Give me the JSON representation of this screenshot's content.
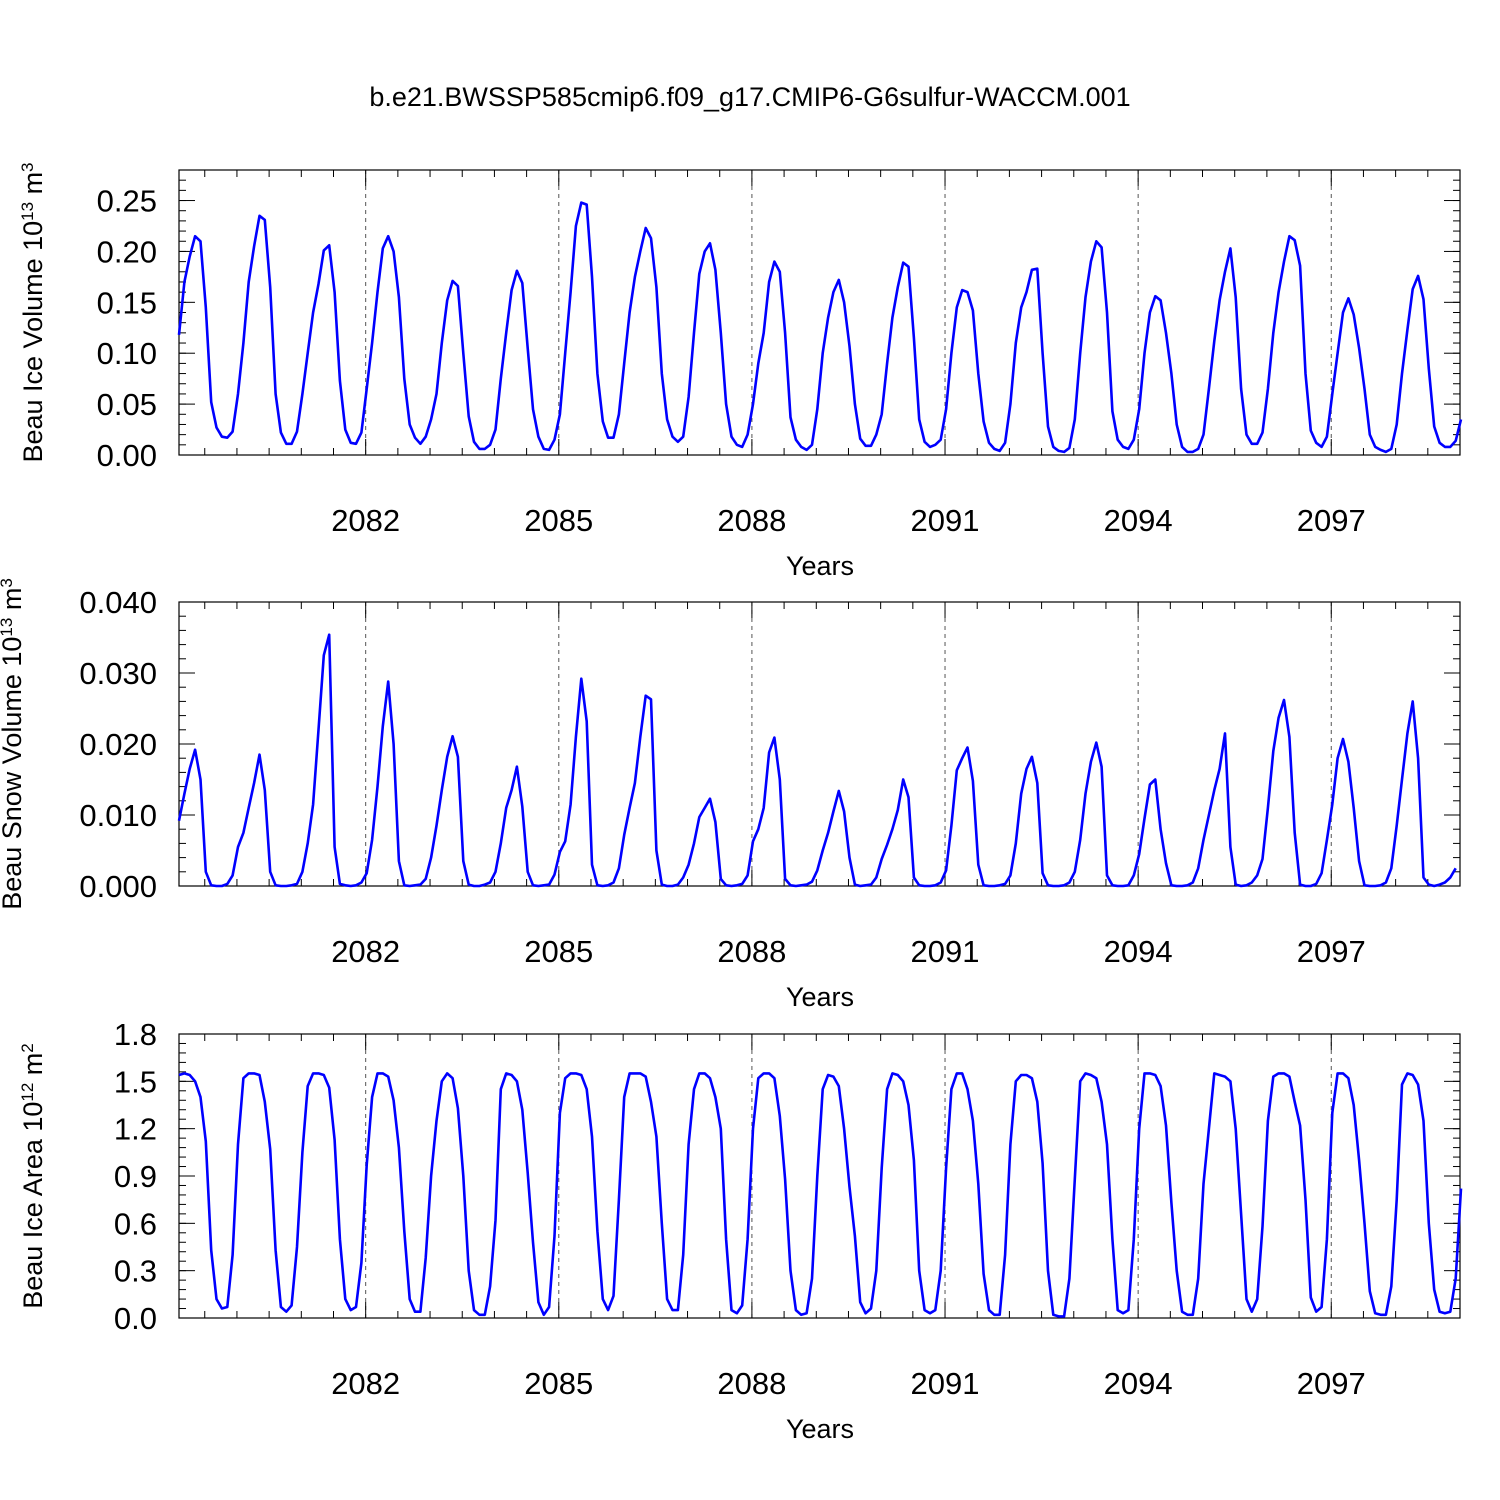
{
  "figure_title": "b.e21.BWSSP585cmip6.f09_g17.CMIP6-G6sulfur-WACCM.001",
  "chart_data": [
    {
      "type": "line",
      "id": "ice-volume",
      "ylabel_main": "Beau Ice Volume 10",
      "ylabel_exp": "13",
      "ylabel_unit": " m",
      "ylabel_unit_exp": "3",
      "xlabel": "Years",
      "xlim": [
        2079.1,
        2099.0
      ],
      "ylim": [
        0.0,
        0.28
      ],
      "yticks": [
        0.0,
        0.05,
        0.1,
        0.15,
        0.2,
        0.25
      ],
      "ytick_labels": [
        "0.00",
        "0.05",
        "0.10",
        "0.15",
        "0.20",
        "0.25"
      ],
      "xticks": [
        2082,
        2085,
        2088,
        2091,
        2094,
        2097
      ],
      "xtick_labels": [
        "2082",
        "2085",
        "2088",
        "2091",
        "2094",
        "2097"
      ],
      "series": [
        {
          "name": "Beau Ice Volume",
          "color": "#0000ff",
          "start_year": 2079.1,
          "step": 0.08333,
          "values": [
            0.118,
            0.17,
            0.195,
            0.215,
            0.21,
            0.145,
            0.052,
            0.027,
            0.018,
            0.017,
            0.023,
            0.06,
            0.11,
            0.17,
            0.205,
            0.235,
            0.231,
            0.165,
            0.06,
            0.022,
            0.011,
            0.011,
            0.023,
            0.06,
            0.1,
            0.14,
            0.168,
            0.201,
            0.206,
            0.16,
            0.073,
            0.025,
            0.012,
            0.011,
            0.022,
            0.065,
            0.11,
            0.16,
            0.203,
            0.215,
            0.2,
            0.155,
            0.075,
            0.03,
            0.017,
            0.011,
            0.018,
            0.035,
            0.06,
            0.11,
            0.152,
            0.171,
            0.166,
            0.1,
            0.038,
            0.013,
            0.006,
            0.006,
            0.01,
            0.025,
            0.075,
            0.12,
            0.162,
            0.181,
            0.169,
            0.105,
            0.045,
            0.018,
            0.006,
            0.005,
            0.015,
            0.04,
            0.1,
            0.16,
            0.225,
            0.248,
            0.246,
            0.175,
            0.08,
            0.033,
            0.017,
            0.017,
            0.04,
            0.09,
            0.14,
            0.175,
            0.2,
            0.223,
            0.213,
            0.165,
            0.08,
            0.035,
            0.018,
            0.013,
            0.018,
            0.057,
            0.12,
            0.178,
            0.2,
            0.208,
            0.182,
            0.12,
            0.05,
            0.018,
            0.01,
            0.008,
            0.02,
            0.05,
            0.09,
            0.12,
            0.17,
            0.19,
            0.18,
            0.12,
            0.037,
            0.015,
            0.008,
            0.005,
            0.01,
            0.045,
            0.1,
            0.135,
            0.16,
            0.172,
            0.15,
            0.107,
            0.05,
            0.016,
            0.009,
            0.009,
            0.02,
            0.04,
            0.09,
            0.135,
            0.165,
            0.189,
            0.185,
            0.115,
            0.035,
            0.013,
            0.008,
            0.01,
            0.015,
            0.045,
            0.1,
            0.145,
            0.162,
            0.16,
            0.142,
            0.08,
            0.033,
            0.012,
            0.006,
            0.004,
            0.012,
            0.05,
            0.11,
            0.145,
            0.16,
            0.182,
            0.183,
            0.1,
            0.028,
            0.008,
            0.004,
            0.003,
            0.007,
            0.035,
            0.1,
            0.155,
            0.19,
            0.21,
            0.204,
            0.14,
            0.043,
            0.015,
            0.008,
            0.006,
            0.015,
            0.045,
            0.1,
            0.14,
            0.156,
            0.152,
            0.12,
            0.08,
            0.03,
            0.008,
            0.003,
            0.003,
            0.006,
            0.02,
            0.065,
            0.112,
            0.152,
            0.18,
            0.203,
            0.155,
            0.065,
            0.02,
            0.011,
            0.011,
            0.022,
            0.065,
            0.12,
            0.16,
            0.19,
            0.215,
            0.211,
            0.186,
            0.08,
            0.024,
            0.012,
            0.008,
            0.018,
            0.06,
            0.1,
            0.14,
            0.154,
            0.138,
            0.105,
            0.065,
            0.02,
            0.008,
            0.005,
            0.003,
            0.006,
            0.03,
            0.08,
            0.123,
            0.163,
            0.176,
            0.153,
            0.085,
            0.028,
            0.012,
            0.008,
            0.008,
            0.014,
            0.035
          ]
        }
      ]
    },
    {
      "type": "line",
      "id": "snow-volume",
      "ylabel_main": "Beau Snow Volume 10",
      "ylabel_exp": "13",
      "ylabel_unit": " m",
      "ylabel_unit_exp": "3",
      "xlabel": "Years",
      "xlim": [
        2079.1,
        2099.0
      ],
      "ylim": [
        0.0,
        0.04
      ],
      "yticks": [
        0.0,
        0.01,
        0.02,
        0.03,
        0.04
      ],
      "ytick_labels": [
        "0.000",
        "0.010",
        "0.020",
        "0.030",
        "0.040"
      ],
      "xticks": [
        2082,
        2085,
        2088,
        2091,
        2094,
        2097
      ],
      "xtick_labels": [
        "2082",
        "2085",
        "2088",
        "2091",
        "2094",
        "2097"
      ],
      "series": [
        {
          "name": "Beau Snow Volume",
          "color": "#0000ff",
          "start_year": 2079.1,
          "step": 0.08333,
          "values": [
            0.0092,
            0.013,
            0.0165,
            0.0192,
            0.015,
            0.002,
            0.0001,
            0.0,
            0.0,
            0.0003,
            0.0015,
            0.0055,
            0.0075,
            0.011,
            0.0145,
            0.0185,
            0.0135,
            0.002,
            0.0001,
            0.0,
            0.0,
            0.0001,
            0.0003,
            0.002,
            0.006,
            0.0115,
            0.022,
            0.0325,
            0.0354,
            0.0055,
            0.0003,
            0.0001,
            0.0,
            0.0001,
            0.0005,
            0.0018,
            0.0065,
            0.014,
            0.0225,
            0.0288,
            0.02,
            0.0035,
            0.0001,
            0.0,
            0.0001,
            0.0002,
            0.001,
            0.004,
            0.0085,
            0.0135,
            0.0182,
            0.0211,
            0.0182,
            0.0035,
            0.0002,
            0.0,
            0.0,
            0.0002,
            0.0005,
            0.002,
            0.006,
            0.011,
            0.0135,
            0.0168,
            0.0112,
            0.002,
            0.0001,
            0.0,
            0.0001,
            0.0002,
            0.0016,
            0.0048,
            0.0063,
            0.0115,
            0.021,
            0.0292,
            0.0232,
            0.003,
            0.0001,
            0.0,
            0.0001,
            0.0005,
            0.0025,
            0.0072,
            0.011,
            0.0145,
            0.021,
            0.0268,
            0.0263,
            0.005,
            0.0002,
            0.0,
            0.0,
            0.0002,
            0.0012,
            0.003,
            0.006,
            0.0097,
            0.011,
            0.0123,
            0.009,
            0.001,
            0.0001,
            0.0,
            0.0001,
            0.0003,
            0.0015,
            0.0063,
            0.008,
            0.011,
            0.0188,
            0.0209,
            0.015,
            0.001,
            0.0001,
            0.0,
            0.0001,
            0.0002,
            0.0006,
            0.0022,
            0.005,
            0.0075,
            0.0105,
            0.0134,
            0.0105,
            0.004,
            0.0002,
            0.0,
            0.0001,
            0.0002,
            0.0012,
            0.0038,
            0.0058,
            0.008,
            0.0107,
            0.015,
            0.0125,
            0.0012,
            0.0001,
            0.0,
            0.0,
            0.0001,
            0.0005,
            0.0022,
            0.0085,
            0.0163,
            0.018,
            0.0195,
            0.0148,
            0.003,
            0.0001,
            0.0,
            0.0,
            0.0001,
            0.0003,
            0.0015,
            0.006,
            0.013,
            0.0165,
            0.0182,
            0.0145,
            0.0018,
            0.0001,
            0.0,
            0.0,
            0.0001,
            0.0005,
            0.002,
            0.0065,
            0.013,
            0.0175,
            0.0202,
            0.0168,
            0.0015,
            0.0001,
            0.0,
            0.0,
            0.0001,
            0.0015,
            0.0045,
            0.0095,
            0.0143,
            0.015,
            0.008,
            0.0032,
            0.0001,
            0.0,
            0.0,
            0.0001,
            0.0005,
            0.0025,
            0.0065,
            0.01,
            0.0135,
            0.0165,
            0.0215,
            0.0055,
            0.0002,
            0.0,
            0.0001,
            0.0005,
            0.0015,
            0.0038,
            0.011,
            0.019,
            0.0237,
            0.0262,
            0.021,
            0.0075,
            0.0002,
            0.0,
            0.0,
            0.0003,
            0.0018,
            0.0065,
            0.0115,
            0.018,
            0.0207,
            0.0175,
            0.011,
            0.0035,
            0.0001,
            0.0,
            0.0,
            0.0001,
            0.0005,
            0.0025,
            0.0085,
            0.015,
            0.0215,
            0.026,
            0.018,
            0.0012,
            0.0002,
            0.0,
            0.0002,
            0.0005,
            0.0012,
            0.0025
          ]
        }
      ]
    },
    {
      "type": "line",
      "id": "ice-area",
      "ylabel_main": "Beau Ice Area 10",
      "ylabel_exp": "12",
      "ylabel_unit": " m",
      "ylabel_unit_exp": "2",
      "xlabel": "Years",
      "xlim": [
        2079.1,
        2099.0
      ],
      "ylim": [
        0.0,
        1.8
      ],
      "yticks": [
        0.0,
        0.3,
        0.6,
        0.9,
        1.2,
        1.5,
        1.8
      ],
      "ytick_labels": [
        "0.0",
        "0.3",
        "0.6",
        "0.9",
        "1.2",
        "1.5",
        "1.8"
      ],
      "xticks": [
        2082,
        2085,
        2088,
        2091,
        2094,
        2097
      ],
      "xtick_labels": [
        "2082",
        "2085",
        "2088",
        "2091",
        "2094",
        "2097"
      ],
      "series": [
        {
          "name": "Beau Ice Area",
          "color": "#0000ff",
          "start_year": 2079.1,
          "step": 0.08333,
          "values": [
            1.54,
            1.55,
            1.54,
            1.5,
            1.4,
            1.12,
            0.43,
            0.12,
            0.06,
            0.07,
            0.4,
            1.1,
            1.52,
            1.55,
            1.55,
            1.54,
            1.37,
            1.07,
            0.43,
            0.07,
            0.04,
            0.08,
            0.45,
            1.05,
            1.47,
            1.55,
            1.55,
            1.54,
            1.46,
            1.13,
            0.5,
            0.12,
            0.05,
            0.07,
            0.35,
            0.97,
            1.4,
            1.55,
            1.55,
            1.53,
            1.38,
            1.08,
            0.55,
            0.12,
            0.04,
            0.04,
            0.38,
            0.9,
            1.25,
            1.5,
            1.55,
            1.52,
            1.33,
            0.9,
            0.3,
            0.05,
            0.02,
            0.02,
            0.2,
            0.62,
            1.45,
            1.55,
            1.54,
            1.5,
            1.32,
            0.92,
            0.48,
            0.1,
            0.02,
            0.07,
            0.52,
            1.3,
            1.52,
            1.55,
            1.55,
            1.54,
            1.45,
            1.15,
            0.55,
            0.12,
            0.05,
            0.14,
            0.75,
            1.4,
            1.55,
            1.55,
            1.55,
            1.53,
            1.37,
            1.15,
            0.6,
            0.12,
            0.05,
            0.05,
            0.4,
            1.1,
            1.45,
            1.55,
            1.55,
            1.52,
            1.4,
            1.2,
            0.5,
            0.05,
            0.03,
            0.08,
            0.5,
            1.2,
            1.52,
            1.55,
            1.55,
            1.52,
            1.28,
            0.88,
            0.3,
            0.05,
            0.02,
            0.03,
            0.25,
            0.9,
            1.45,
            1.54,
            1.53,
            1.47,
            1.2,
            0.83,
            0.52,
            0.1,
            0.03,
            0.06,
            0.3,
            0.95,
            1.45,
            1.55,
            1.54,
            1.5,
            1.35,
            1.0,
            0.3,
            0.05,
            0.03,
            0.05,
            0.3,
            0.95,
            1.45,
            1.55,
            1.55,
            1.45,
            1.25,
            0.85,
            0.28,
            0.05,
            0.02,
            0.02,
            0.4,
            1.1,
            1.5,
            1.54,
            1.54,
            1.52,
            1.37,
            0.98,
            0.3,
            0.02,
            0.01,
            0.01,
            0.25,
            0.88,
            1.5,
            1.55,
            1.54,
            1.52,
            1.37,
            1.1,
            0.5,
            0.05,
            0.03,
            0.05,
            0.5,
            1.2,
            1.55,
            1.55,
            1.54,
            1.47,
            1.22,
            0.73,
            0.3,
            0.04,
            0.02,
            0.02,
            0.25,
            0.85,
            1.2,
            1.55,
            1.54,
            1.53,
            1.5,
            1.2,
            0.66,
            0.12,
            0.04,
            0.12,
            0.58,
            1.25,
            1.53,
            1.55,
            1.55,
            1.53,
            1.37,
            1.22,
            0.75,
            0.13,
            0.04,
            0.07,
            0.5,
            1.3,
            1.55,
            1.55,
            1.52,
            1.35,
            1.0,
            0.6,
            0.17,
            0.03,
            0.02,
            0.02,
            0.2,
            0.75,
            1.48,
            1.55,
            1.54,
            1.48,
            1.25,
            0.6,
            0.18,
            0.04,
            0.03,
            0.04,
            0.25,
            0.82
          ]
        }
      ]
    }
  ]
}
